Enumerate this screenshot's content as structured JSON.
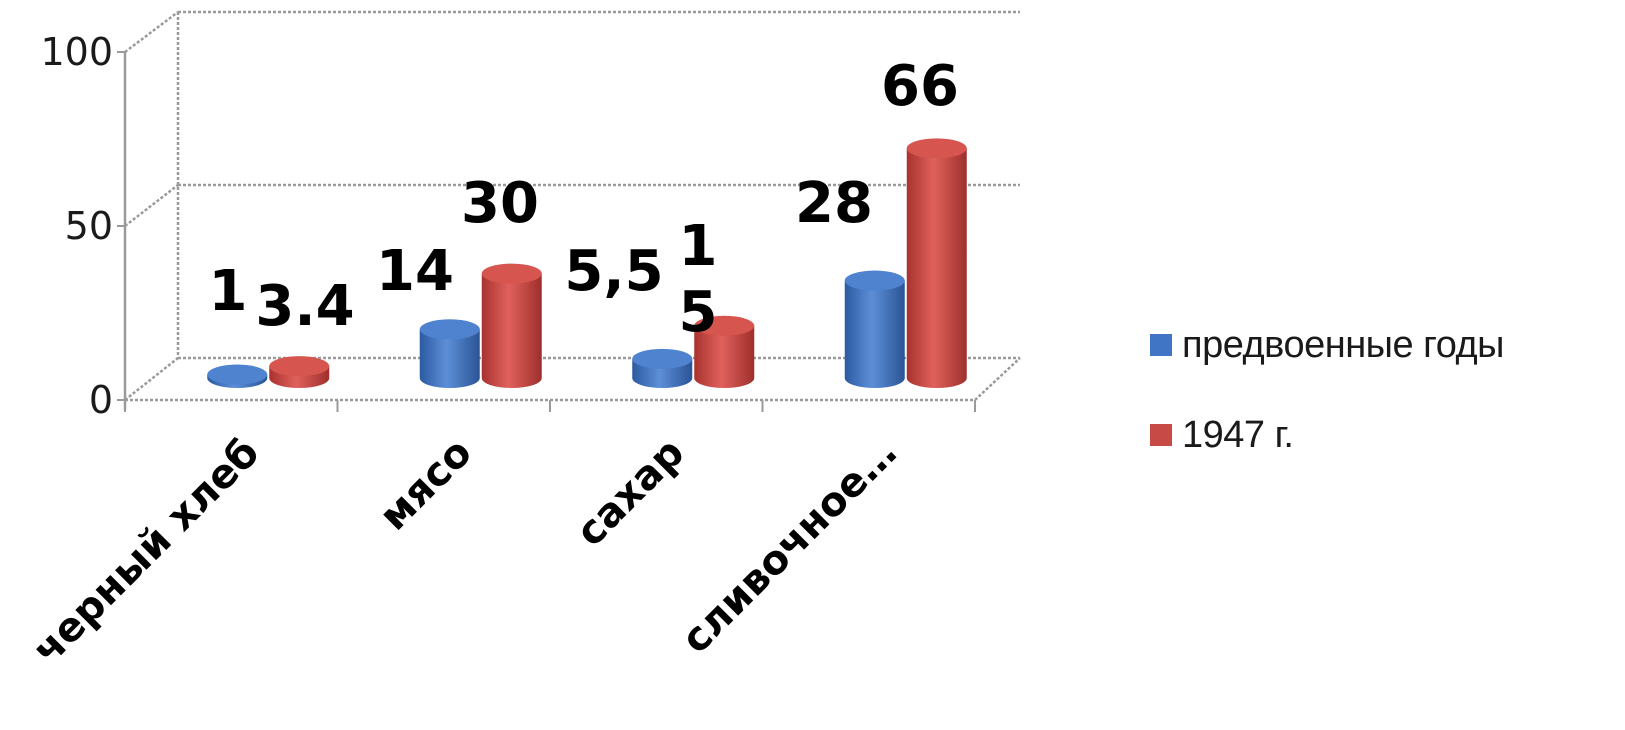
{
  "chart_data": {
    "type": "bar",
    "title": "",
    "xlabel": "",
    "ylabel": "",
    "ylim": [
      0,
      100
    ],
    "yticks": [
      "0",
      "50",
      "100"
    ],
    "grid": true,
    "legend_position": "right",
    "categories": [
      "черный хлеб",
      "мясо",
      "сахар",
      "сливочное…"
    ],
    "series": [
      {
        "name": "предвоенные годы",
        "color": "#3f75c4",
        "values": [
          1,
          14,
          5.5,
          28
        ],
        "labels": [
          "1",
          "14",
          "5,5",
          "28"
        ]
      },
      {
        "name": "1947 г.",
        "color": "#c84a46",
        "values": [
          3.4,
          30,
          15,
          66
        ],
        "labels": [
          "3.4",
          "30",
          "1\n5",
          "66"
        ]
      }
    ]
  }
}
